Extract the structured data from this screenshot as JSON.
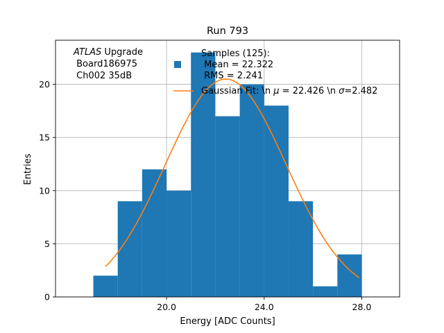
{
  "chart_data": {
    "type": "bar",
    "title": "Run 793",
    "xlabel": "Energy [ADC Counts]",
    "ylabel": "Entries",
    "xlim": [
      15.45,
      29.55
    ],
    "ylim": [
      0,
      24.15
    ],
    "grid": true,
    "bins": [
      {
        "left": 17,
        "right": 18,
        "count": 2
      },
      {
        "left": 18,
        "right": 19,
        "count": 9
      },
      {
        "left": 19,
        "right": 20,
        "count": 12
      },
      {
        "left": 20,
        "right": 21,
        "count": 10
      },
      {
        "left": 21,
        "right": 22,
        "count": 23
      },
      {
        "left": 22,
        "right": 23,
        "count": 17
      },
      {
        "left": 23,
        "right": 24,
        "count": 20
      },
      {
        "left": 24,
        "right": 25,
        "count": 18
      },
      {
        "left": 25,
        "right": 26,
        "count": 9
      },
      {
        "left": 26,
        "right": 27,
        "count": 1
      },
      {
        "left": 27,
        "right": 28,
        "count": 4
      }
    ],
    "x_ticks": [
      {
        "value": 20,
        "label": "20.0"
      },
      {
        "value": 24,
        "label": "24.0"
      },
      {
        "value": 28,
        "label": "28.0"
      }
    ],
    "y_ticks": [
      {
        "value": 0,
        "label": "0"
      },
      {
        "value": 5,
        "label": "5"
      },
      {
        "value": 10,
        "label": "10"
      },
      {
        "value": 15,
        "label": "15"
      },
      {
        "value": 20,
        "label": "20"
      }
    ],
    "fit": {
      "mu": 22.426,
      "sigma": 2.482,
      "amplitude": 20.5,
      "x_start": 17.5,
      "x_end": 27.9
    },
    "colors": {
      "bars": "#1f77b4",
      "fit": "#ff7f0e",
      "grid": "#b0b0b0"
    },
    "annotation": {
      "italic_part": "ATLAS",
      "rest_first_line": " Upgrade",
      "line2": " Board186975",
      "line3": " Ch002 35dB"
    },
    "legend": {
      "samples_line1": "Samples (125):",
      "samples_line2": " Mean = 22.322",
      "samples_line3": " RMS = 2.241",
      "fit_prefix": "Gaussian Fit: \\n ",
      "mu_symbol": "μ",
      "mu_value": " = 22.426 \\n ",
      "sigma_symbol": "σ",
      "sigma_value": "=2.482"
    }
  }
}
